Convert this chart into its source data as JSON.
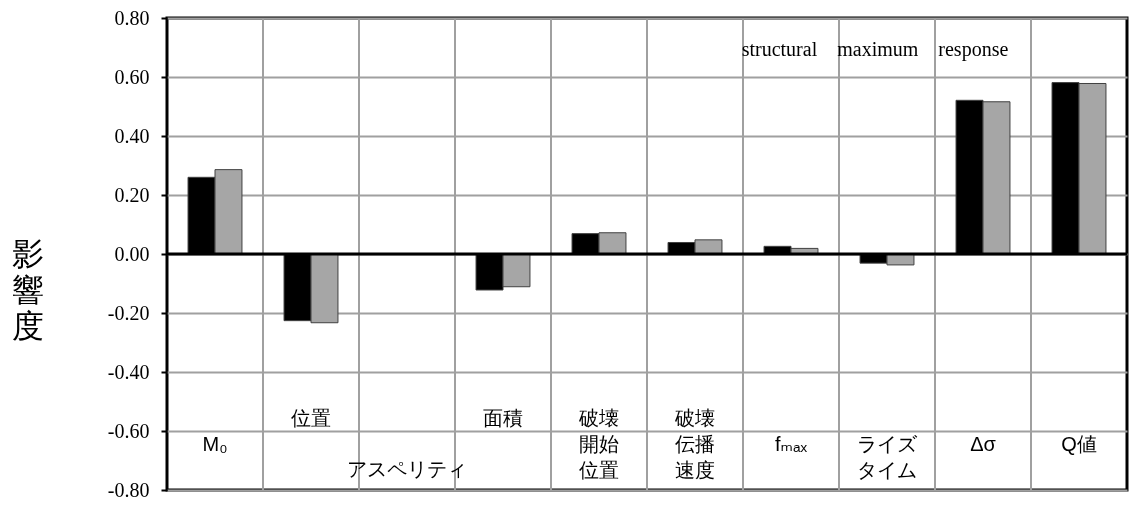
{
  "chart_data": {
    "type": "bar",
    "ylabel": "影響度",
    "categories": [
      "M₀",
      "位置",
      null,
      "面積",
      "破壊開始位置",
      "破壊伝播速度",
      "fₘₐₓ",
      "ライズタイム",
      "Δσ",
      "Q値"
    ],
    "series": [
      {
        "color": "#000000",
        "values": [
          0.26,
          -0.226,
          null,
          -0.122,
          0.069,
          0.039,
          0.026,
          -0.031,
          0.521,
          0.581
        ]
      },
      {
        "color": "#a6a6a6",
        "values": [
          0.286,
          -0.233,
          null,
          -0.111,
          0.072,
          0.048,
          0.019,
          -0.037,
          0.516,
          0.578
        ]
      }
    ],
    "ylim": [
      -0.8,
      0.8
    ],
    "yticks": [
      {
        "value": -0.8,
        "label": "-0.80"
      },
      {
        "value": -0.6,
        "label": "-0.60"
      },
      {
        "value": -0.4,
        "label": "-0.40"
      },
      {
        "value": -0.2,
        "label": "-0.20"
      },
      {
        "value": 0,
        "label": "0.00"
      },
      {
        "value": 0.2,
        "label": "0.20"
      },
      {
        "value": 0.4,
        "label": "0.40"
      },
      {
        "value": 0.6,
        "label": "0.60"
      },
      {
        "value": 0.8,
        "label": "0.80"
      }
    ],
    "grid": true,
    "ref_lines": [
      {
        "axis": "y",
        "value": 0,
        "color": "#000000"
      }
    ],
    "annotations": [
      "structural　maximum　response",
      "アスペリティ"
    ]
  }
}
